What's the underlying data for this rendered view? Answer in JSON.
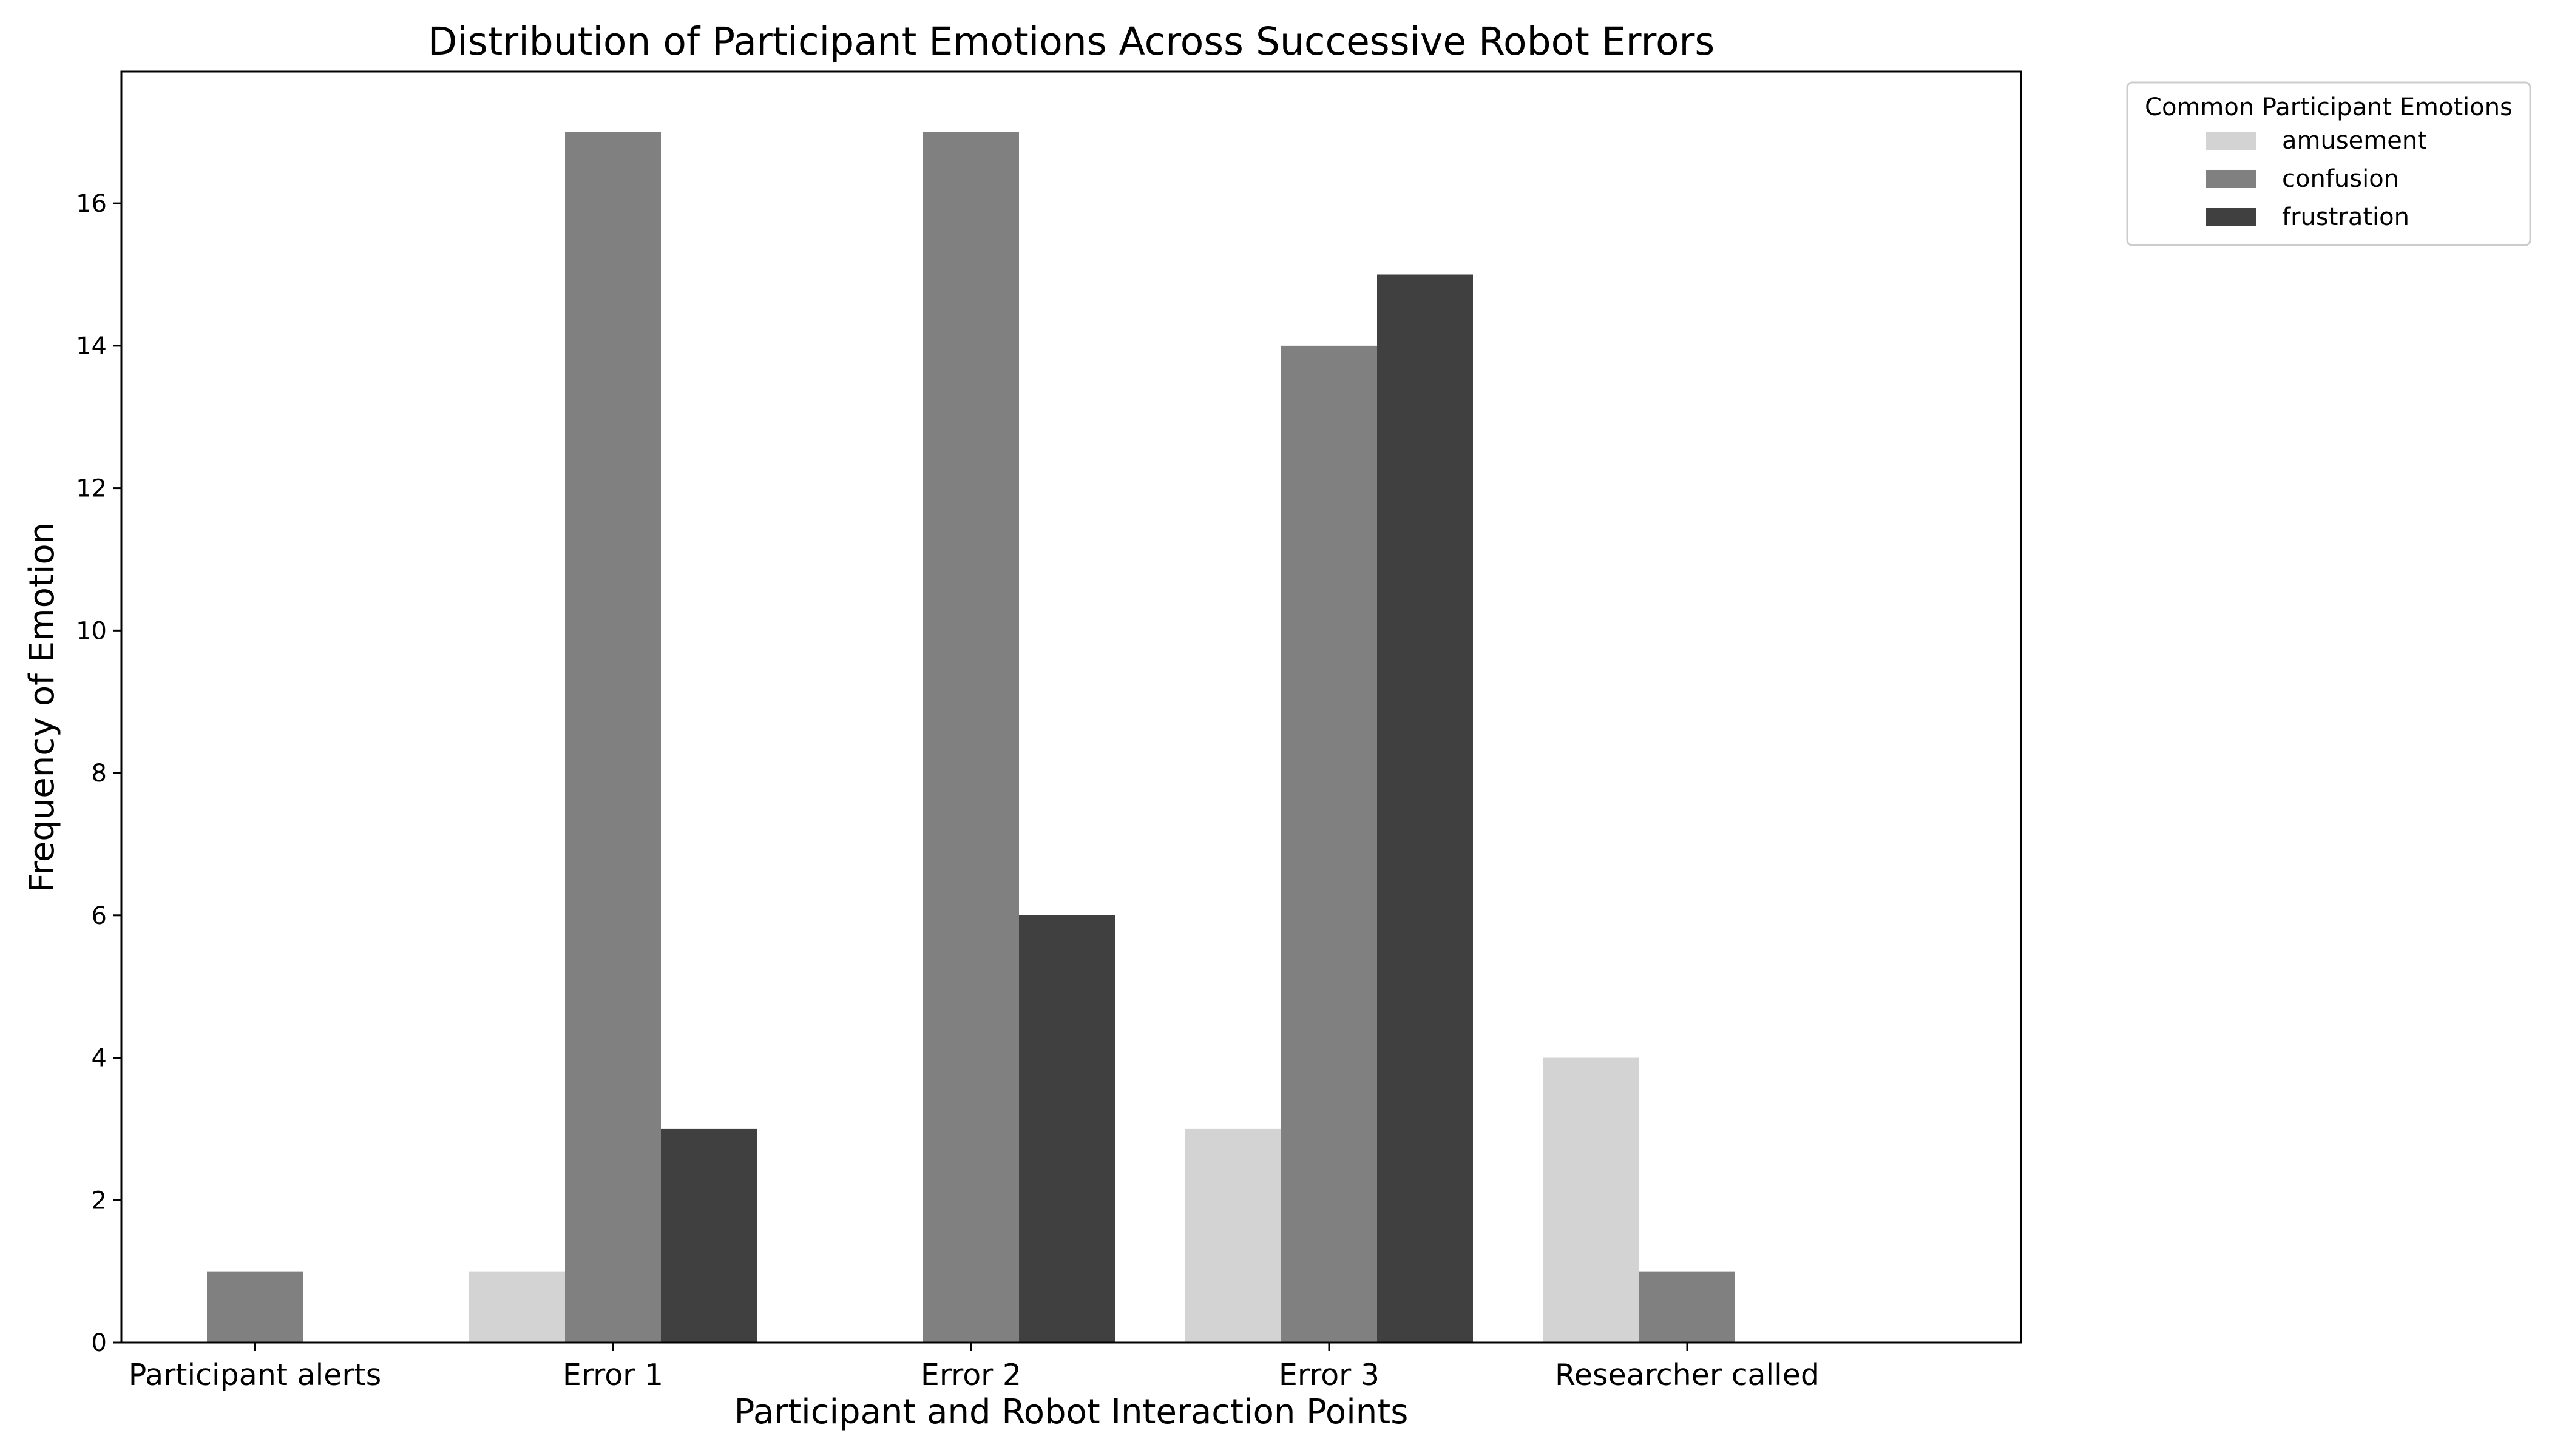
{
  "chart_data": {
    "type": "bar",
    "title": "Distribution of Participant Emotions Across Successive Robot Errors",
    "xlabel": "Participant and Robot Interaction Points",
    "ylabel": "Frequency of Emotion",
    "categories": [
      "Participant alerts",
      "Error 1",
      "Error 2",
      "Error 3",
      "Researcher called"
    ],
    "series": [
      {
        "name": "amusement",
        "color": "#d3d3d3",
        "values": [
          0,
          1,
          0,
          3,
          4
        ]
      },
      {
        "name": "confusion",
        "color": "#808080",
        "values": [
          1,
          17,
          17,
          14,
          1
        ]
      },
      {
        "name": "frustration",
        "color": "#404040",
        "values": [
          0,
          3,
          6,
          15,
          0
        ]
      }
    ],
    "ylim": [
      0,
      17.85
    ],
    "yticks": [
      0,
      2,
      4,
      6,
      8,
      10,
      12,
      14,
      16
    ],
    "grid": false,
    "legend": {
      "title": "Common Participant Emotions",
      "placement": "outside-top-right"
    }
  }
}
